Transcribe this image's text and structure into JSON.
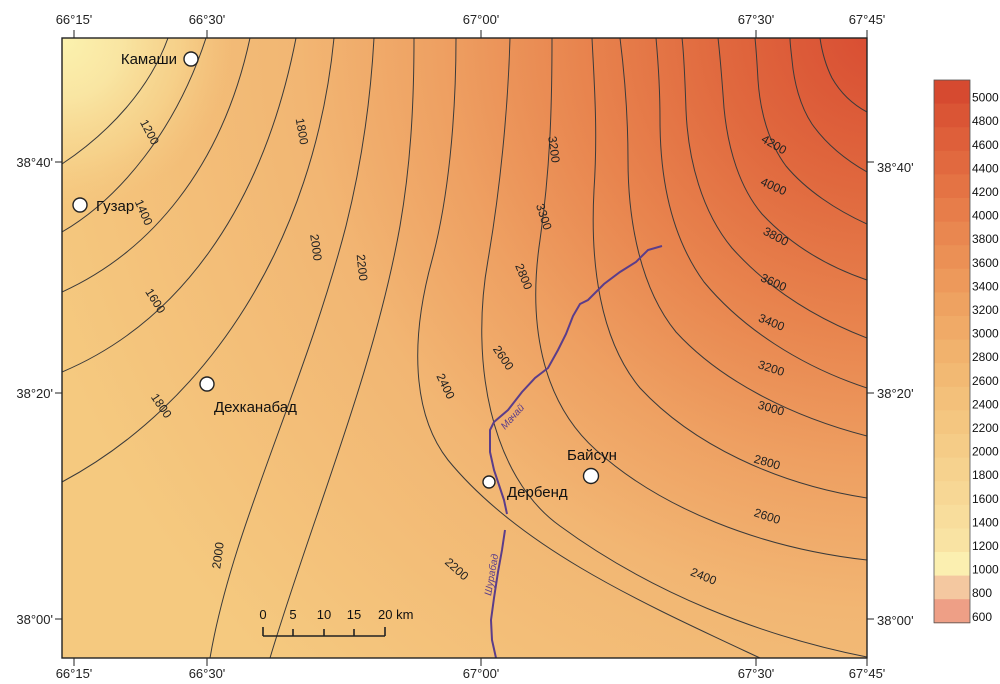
{
  "map": {
    "lon_ticks_top": [
      "66°15'",
      "66°30'",
      "67°00'",
      "67°30'",
      "67°45'"
    ],
    "lon_ticks_bottom": [
      "66°15'",
      "66°30'",
      "67°00'",
      "67°30'",
      "67°45'"
    ],
    "lat_ticks_left": [
      "38°40'",
      "38°20'",
      "38°00'"
    ],
    "lat_ticks_right": [
      "38°40'",
      "38°20'",
      "38°00'"
    ],
    "towns": [
      "Камаши",
      "Гузар",
      "Дехканабад",
      "Дербенд",
      "Байсун"
    ],
    "rivers": [
      "Мачай",
      "Шурабад"
    ],
    "contour_labels": [
      "1200",
      "1400",
      "1600",
      "1800",
      "1800",
      "2000",
      "2000",
      "2200",
      "2200",
      "2400",
      "2400",
      "2600",
      "2600",
      "2800",
      "2800",
      "3000",
      "3200",
      "3200",
      "3300",
      "3400",
      "3600",
      "3800",
      "4000",
      "4200"
    ],
    "scale_bar": {
      "ticks": [
        "0",
        "5",
        "10",
        "15",
        "20 km"
      ]
    }
  },
  "legend": {
    "values": [
      "5000",
      "4800",
      "4600",
      "4400",
      "4200",
      "4000",
      "3800",
      "3600",
      "3400",
      "3200",
      "3000",
      "2800",
      "2600",
      "2400",
      "2200",
      "2000",
      "1800",
      "1600",
      "1400",
      "1200",
      "1000",
      "800",
      "600"
    ],
    "colors": [
      "#d64a30",
      "#da5535",
      "#de5f3a",
      "#e1693f",
      "#e47344",
      "#e77d4a",
      "#e98750",
      "#eb9055",
      "#ed995b",
      "#eea261",
      "#f0aa67",
      "#f1b26d",
      "#f2b973",
      "#f3c07a",
      "#f4c680",
      "#f5cc87",
      "#f6d28e",
      "#f7d795",
      "#f8dd9c",
      "#f9e3a3",
      "#fbefb0",
      "#f4c8a0",
      "#ee9f86"
    ]
  }
}
